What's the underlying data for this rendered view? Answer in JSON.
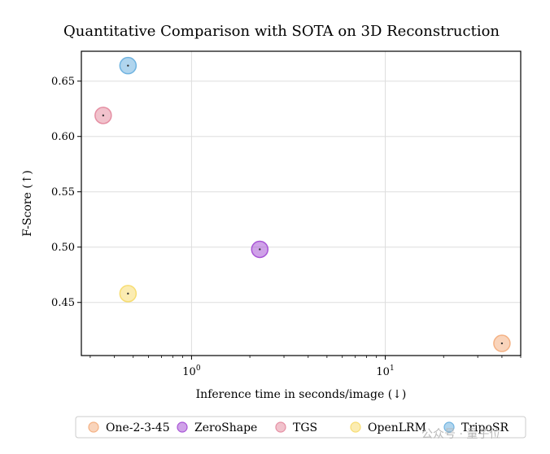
{
  "chart_data": {
    "type": "scatter",
    "title": "Quantitative Comparison with SOTA on 3D Reconstruction",
    "xlabel": "Inference time in seconds/image (↓)",
    "ylabel": "F-Score (↑)",
    "xscale": "log",
    "xlim": [
      0.27,
      50
    ],
    "ylim": [
      0.402,
      0.677
    ],
    "grid": true,
    "x_ticks": [
      {
        "value": 1,
        "base": "10",
        "exp": "0"
      },
      {
        "value": 10,
        "base": "10",
        "exp": "1"
      }
    ],
    "y_ticks": [
      {
        "value": 0.45,
        "label": "0.45"
      },
      {
        "value": 0.5,
        "label": "0.50"
      },
      {
        "value": 0.55,
        "label": "0.55"
      },
      {
        "value": 0.6,
        "label": "0.60"
      },
      {
        "value": 0.65,
        "label": "0.65"
      }
    ],
    "legend_position": "bottom",
    "series": [
      {
        "name": "One-2-3-45",
        "x": 40.0,
        "y": 0.413,
        "color": "#f4b183"
      },
      {
        "name": "ZeroShape",
        "x": 2.25,
        "y": 0.498,
        "color": "#a855d6"
      },
      {
        "name": "TGS",
        "x": 0.35,
        "y": 0.619,
        "color": "#e58fa3"
      },
      {
        "name": "OpenLRM",
        "x": 0.47,
        "y": 0.458,
        "color": "#f7dd72"
      },
      {
        "name": "TripoSR",
        "x": 0.47,
        "y": 0.664,
        "color": "#6fb3e0"
      }
    ]
  },
  "watermark": {
    "text": "公众号 · 量子位"
  }
}
